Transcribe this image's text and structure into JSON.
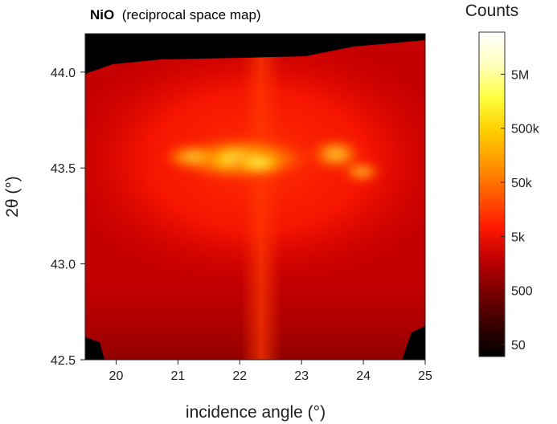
{
  "chart_data": {
    "type": "heatmap",
    "title_bold": "NiO",
    "title_rest": "(reciprocal space map)",
    "xlabel": "incidence angle (°)",
    "ylabel": "2θ (°)",
    "xlim": [
      19.5,
      25
    ],
    "ylim": [
      42.5,
      44.2
    ],
    "x_ticks": [
      {
        "value": 20,
        "label": "20"
      },
      {
        "value": 21,
        "label": "21"
      },
      {
        "value": 22,
        "label": "22"
      },
      {
        "value": 23,
        "label": "23"
      },
      {
        "value": 24,
        "label": "24"
      },
      {
        "value": 25,
        "label": "25"
      }
    ],
    "y_ticks": [
      {
        "value": 42.5,
        "label": "42.5"
      },
      {
        "value": 43.0,
        "label": "43.0"
      },
      {
        "value": 43.5,
        "label": "43.5"
      },
      {
        "value": 44.0,
        "label": "44.0"
      }
    ],
    "colorbar": {
      "title": "Counts",
      "scale": "log",
      "range": [
        30,
        30000000
      ],
      "ticks": [
        {
          "value": 50,
          "label": "50"
        },
        {
          "value": 500,
          "label": "500"
        },
        {
          "value": 5000,
          "label": "5k"
        },
        {
          "value": 50000,
          "label": "50k"
        },
        {
          "value": 500000,
          "label": "500k"
        },
        {
          "value": 5000000,
          "label": "5M"
        }
      ],
      "colors": [
        "#000000",
        "#3a0000",
        "#7a0000",
        "#c00000",
        "#ff1a00",
        "#ff5a00",
        "#ff9a00",
        "#ffd000",
        "#ffff40",
        "#ffffc0",
        "#ffffff"
      ]
    },
    "peaks": [
      {
        "x": 22.3,
        "y": 43.52,
        "counts": 2000000
      },
      {
        "x": 21.5,
        "y": 43.55,
        "counts": 500000
      },
      {
        "x": 23.6,
        "y": 43.56,
        "counts": 300000
      },
      {
        "x": 24.0,
        "y": 43.47,
        "counts": 150000
      }
    ]
  }
}
